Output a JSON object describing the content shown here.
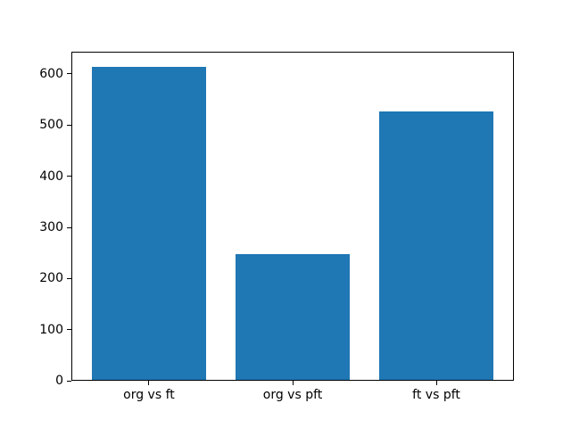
{
  "chart_data": {
    "type": "bar",
    "title": "",
    "xlabel": "",
    "ylabel": "",
    "categories": [
      "org vs ft",
      "org vs pft",
      "ft vs pft"
    ],
    "values": [
      613,
      248,
      527
    ],
    "yticks": [
      0,
      100,
      200,
      300,
      400,
      500,
      600
    ],
    "ylim": [
      0,
      644
    ],
    "xlim": [
      -0.54,
      2.54
    ],
    "bar_width_fraction": 0.8,
    "bar_color": "#1f77b4",
    "background_color": "#ffffff",
    "spine_color": "#000000",
    "grid": false,
    "legend": false
  }
}
